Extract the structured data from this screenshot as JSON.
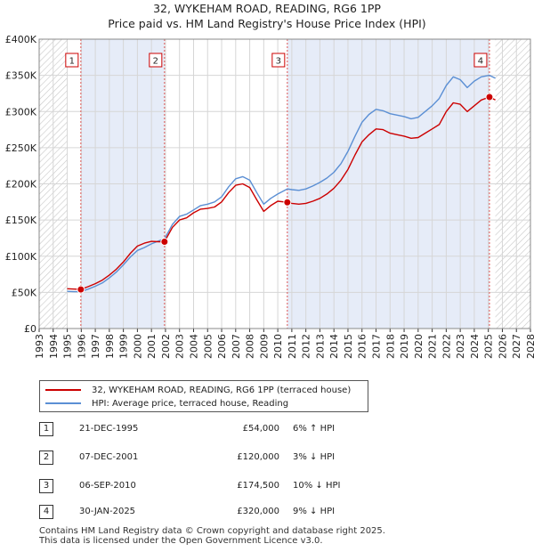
{
  "title": "32, WYKEHAM ROAD, READING, RG6 1PP",
  "subtitle": "Price paid vs. HM Land Registry's House Price Index (HPI)",
  "chart_data": {
    "type": "line",
    "xlim": [
      1993,
      2028
    ],
    "ylim": [
      0,
      400000
    ],
    "x_ticks": [
      "1993",
      "1994",
      "1995",
      "1996",
      "1997",
      "1998",
      "1999",
      "2000",
      "2001",
      "2002",
      "2003",
      "2004",
      "2005",
      "2006",
      "2007",
      "2008",
      "2009",
      "2010",
      "2011",
      "2012",
      "2013",
      "2014",
      "2015",
      "2016",
      "2017",
      "2018",
      "2019",
      "2020",
      "2021",
      "2022",
      "2023",
      "2024",
      "2025",
      "2026",
      "2027",
      "2028"
    ],
    "y_ticks": [
      {
        "value": 0,
        "label": "£0"
      },
      {
        "value": 50000,
        "label": "£50K"
      },
      {
        "value": 100000,
        "label": "£100K"
      },
      {
        "value": 150000,
        "label": "£150K"
      },
      {
        "value": 200000,
        "label": "£200K"
      },
      {
        "value": 250000,
        "label": "£250K"
      },
      {
        "value": 300000,
        "label": "£300K"
      },
      {
        "value": 350000,
        "label": "£350K"
      },
      {
        "value": 400000,
        "label": "£400K"
      }
    ],
    "grid": true,
    "shaded_ranges": [
      {
        "from": 1995.97,
        "to": 2001.93
      },
      {
        "from": 2010.68,
        "to": 2025.08
      }
    ],
    "hatched_ranges": [
      {
        "from": 1993,
        "to": 1995.0
      },
      {
        "from": 2025.5,
        "to": 2028
      }
    ],
    "series": [
      {
        "name": "32, WYKEHAM ROAD, READING, RG6 1PP (terraced house)",
        "color": "#cc0000",
        "x": [
          1995.0,
          1995.5,
          1995.97,
          1996.5,
          1997.0,
          1997.5,
          1998.0,
          1998.5,
          1999.0,
          1999.5,
          2000.0,
          2000.5,
          2001.0,
          2001.5,
          2001.93,
          2002.5,
          2003.0,
          2003.5,
          2004.0,
          2004.5,
          2005.0,
          2005.5,
          2006.0,
          2006.5,
          2007.0,
          2007.5,
          2008.0,
          2008.5,
          2009.0,
          2009.5,
          2010.0,
          2010.68,
          2011.0,
          2011.5,
          2012.0,
          2012.5,
          2013.0,
          2013.5,
          2014.0,
          2014.5,
          2015.0,
          2015.5,
          2016.0,
          2016.5,
          2017.0,
          2017.5,
          2018.0,
          2018.5,
          2019.0,
          2019.5,
          2020.0,
          2020.5,
          2021.0,
          2021.5,
          2022.0,
          2022.5,
          2023.0,
          2023.5,
          2024.0,
          2024.5,
          2025.08,
          2025.5
        ],
        "y": [
          55000,
          54500,
          54000,
          58000,
          62000,
          67000,
          74000,
          82000,
          92000,
          104000,
          114000,
          118000,
          120500,
          120000,
          120000,
          140000,
          150000,
          153000,
          160000,
          165000,
          166000,
          168000,
          175000,
          188000,
          198000,
          200000,
          195000,
          178000,
          162000,
          170000,
          176000,
          174500,
          173000,
          172000,
          173000,
          176000,
          180000,
          186000,
          194000,
          205000,
          220000,
          240000,
          258000,
          268000,
          276000,
          275000,
          270000,
          268000,
          266000,
          263000,
          264000,
          270000,
          276000,
          282000,
          300000,
          312000,
          310000,
          300000,
          308000,
          316000,
          320000,
          316000
        ]
      },
      {
        "name": "HPI: Average price, terraced house, Reading",
        "color": "#5b8fd4",
        "x": [
          1995.0,
          1995.5,
          1995.97,
          1996.5,
          1997.0,
          1997.5,
          1998.0,
          1998.5,
          1999.0,
          1999.5,
          2000.0,
          2000.5,
          2001.0,
          2001.5,
          2001.93,
          2002.5,
          2003.0,
          2003.5,
          2004.0,
          2004.5,
          2005.0,
          2005.5,
          2006.0,
          2006.5,
          2007.0,
          2007.5,
          2008.0,
          2008.5,
          2009.0,
          2009.5,
          2010.0,
          2010.68,
          2011.0,
          2011.5,
          2012.0,
          2012.5,
          2013.0,
          2013.5,
          2014.0,
          2014.5,
          2015.0,
          2015.5,
          2016.0,
          2016.5,
          2017.0,
          2017.5,
          2018.0,
          2018.5,
          2019.0,
          2019.5,
          2020.0,
          2020.5,
          2021.0,
          2021.5,
          2022.0,
          2022.5,
          2023.0,
          2023.5,
          2024.0,
          2024.5,
          2025.08,
          2025.5
        ],
        "y": [
          51500,
          51000,
          51000,
          54500,
          58500,
          63000,
          70000,
          78000,
          88000,
          99000,
          108000,
          112000,
          117000,
          121000,
          124000,
          144000,
          155000,
          158000,
          164000,
          170000,
          172000,
          175000,
          182000,
          196000,
          207000,
          210000,
          205000,
          188000,
          172000,
          180000,
          186000,
          193000,
          192000,
          191000,
          193000,
          197000,
          202000,
          208000,
          216000,
          228000,
          245000,
          266000,
          285000,
          296000,
          303000,
          301000,
          297000,
          295000,
          293000,
          290000,
          292000,
          300000,
          308000,
          318000,
          336000,
          348000,
          344000,
          333000,
          342000,
          348000,
          350000,
          346000
        ]
      }
    ],
    "sales": [
      {
        "label": "1",
        "x": 1995.97,
        "y": 54000
      },
      {
        "label": "2",
        "x": 2001.93,
        "y": 120000
      },
      {
        "label": "3",
        "x": 2010.68,
        "y": 174500
      },
      {
        "label": "4",
        "x": 2025.08,
        "y": 320000
      }
    ]
  },
  "legend": [
    {
      "label": "32, WYKEHAM ROAD, READING, RG6 1PP (terraced house)",
      "color": "#cc0000"
    },
    {
      "label": "HPI: Average price, terraced house, Reading",
      "color": "#5b8fd4"
    }
  ],
  "transactions": [
    {
      "num": "1",
      "date": "21-DEC-1995",
      "price": "£54,000",
      "hpi": "6% ↑ HPI"
    },
    {
      "num": "2",
      "date": "07-DEC-2001",
      "price": "£120,000",
      "hpi": "3% ↓ HPI"
    },
    {
      "num": "3",
      "date": "06-SEP-2010",
      "price": "£174,500",
      "hpi": "10% ↓ HPI"
    },
    {
      "num": "4",
      "date": "30-JAN-2025",
      "price": "£320,000",
      "hpi": "9% ↓ HPI"
    }
  ],
  "footer": {
    "line1": "Contains HM Land Registry data © Crown copyright and database right 2025.",
    "line2": "This data is licensed under the Open Government Licence v3.0."
  }
}
